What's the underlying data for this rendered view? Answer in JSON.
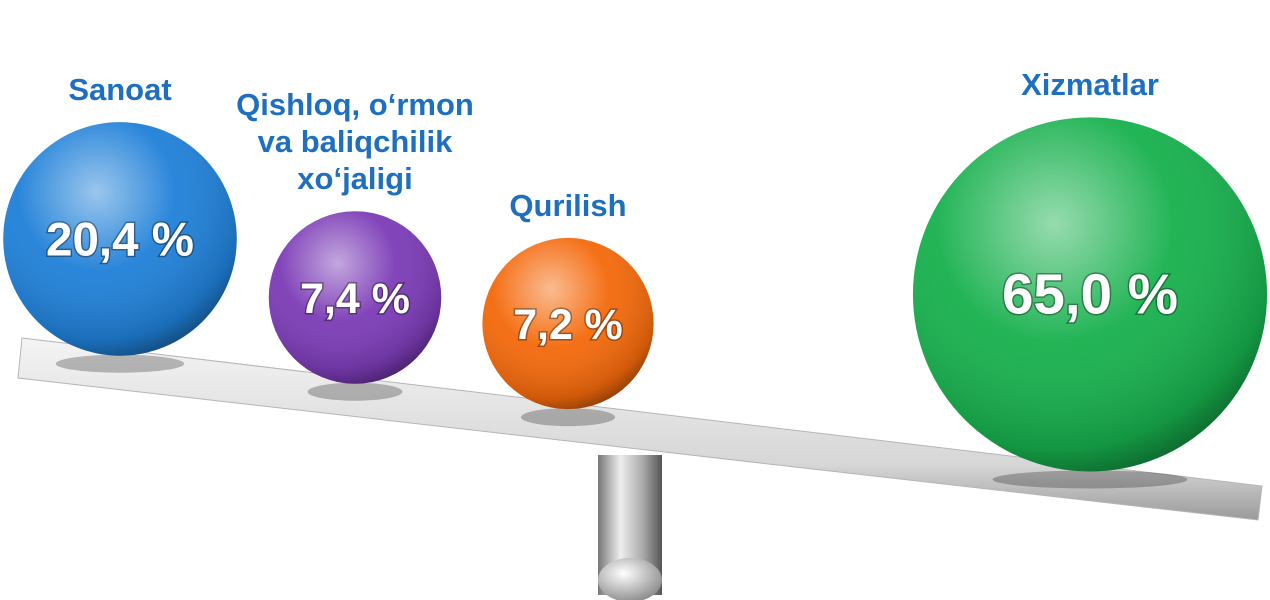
{
  "chart_data": {
    "type": "bubble",
    "categories": [
      "Sanoat",
      "Qishloq, o‘rmon va baliqchilik xo‘jaligi",
      "Qurilish",
      "Xizmatlar"
    ],
    "values": [
      20.4,
      7.4,
      7.2,
      65.0
    ],
    "value_labels": [
      "20,4 %",
      "7,4 %",
      "7,2 %",
      "65,0 %"
    ],
    "colors": [
      "#1f80d8",
      "#7b3bb6",
      "#f4690b",
      "#17b04d"
    ]
  }
}
